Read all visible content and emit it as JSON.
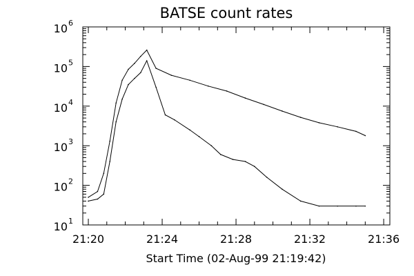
{
  "chart_data": {
    "type": "line",
    "title": "BATSE count rates",
    "xlabel": "Start Time (02-Aug-99 21:19:42)",
    "ylabel": "",
    "y_scale": "log",
    "x_units": "time",
    "xlim": [
      "21:19:42",
      "21:36:20"
    ],
    "ylim": [
      10,
      1000000
    ],
    "x_ticks": [
      "21:20",
      "21:24",
      "21:28",
      "21:32",
      "21:36"
    ],
    "y_ticks": [
      {
        "base": "10",
        "exp": "1",
        "value": 10
      },
      {
        "base": "10",
        "exp": "2",
        "value": 100
      },
      {
        "base": "10",
        "exp": "3",
        "value": 1000
      },
      {
        "base": "10",
        "exp": "4",
        "value": 10000
      },
      {
        "base": "10",
        "exp": "5",
        "value": 100000
      },
      {
        "base": "10",
        "exp": "6",
        "value": 1000000
      }
    ],
    "grid": false,
    "line_color": "#000000",
    "series": [
      {
        "x": [
          "21:20:00",
          "21:20:30",
          "21:20:50",
          "21:21:10",
          "21:21:30",
          "21:21:50",
          "21:22:10",
          "21:22:30",
          "21:22:50",
          "21:23:10",
          "21:23:40",
          "21:24:30",
          "21:25:30",
          "21:26:30",
          "21:27:30",
          "21:28:30",
          "21:29:30",
          "21:30:30",
          "21:31:30",
          "21:32:30",
          "21:33:30",
          "21:34:30",
          "21:35:00"
        ],
        "values": [
          50,
          70,
          200,
          1300,
          12000,
          45000,
          85000,
          120000,
          180000,
          260000,
          90000,
          60000,
          45000,
          32000,
          24000,
          16000,
          11000,
          7500,
          5200,
          3800,
          3000,
          2300,
          1800
        ]
      },
      {
        "x": [
          "21:20:00",
          "21:20:30",
          "21:20:50",
          "21:21:10",
          "21:21:30",
          "21:21:50",
          "21:22:10",
          "21:22:30",
          "21:22:50",
          "21:23:10",
          "21:23:40",
          "21:24:10",
          "21:24:40",
          "21:25:30",
          "21:26:00",
          "21:26:40",
          "21:27:10",
          "21:27:50",
          "21:28:30",
          "21:29:00",
          "21:29:40",
          "21:30:30",
          "21:31:30",
          "21:32:30",
          "21:33:30",
          "21:34:30",
          "21:35:00"
        ],
        "values": [
          40,
          45,
          60,
          400,
          4000,
          15000,
          35000,
          50000,
          70000,
          140000,
          30000,
          6000,
          4500,
          2500,
          1700,
          1000,
          600,
          450,
          400,
          300,
          160,
          80,
          40,
          30,
          30,
          30,
          30
        ]
      }
    ]
  }
}
